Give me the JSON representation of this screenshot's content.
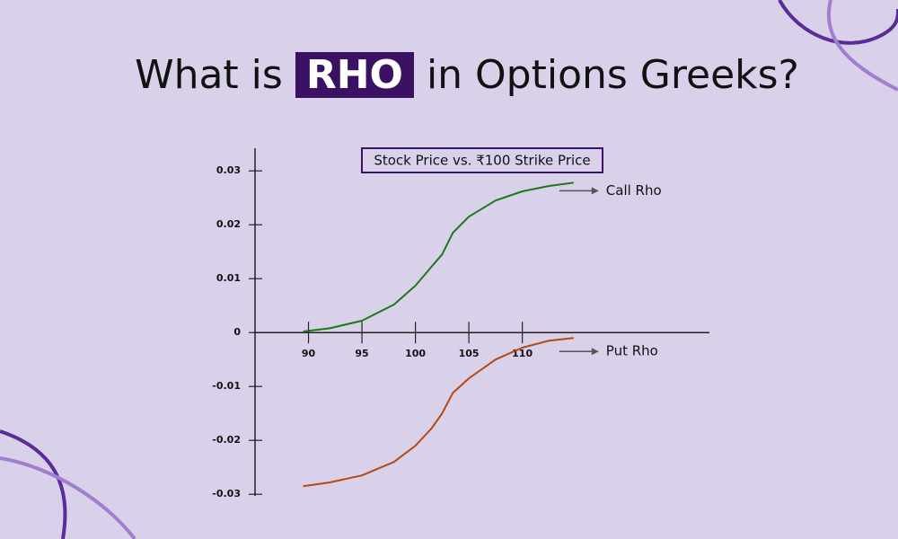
{
  "header": {
    "title_before": "What is",
    "title_highlight": "RHO",
    "title_after": "in Options Greeks?"
  },
  "chart_data": {
    "type": "line",
    "subtitle": "Stock Price vs. ₹100 Strike Price",
    "x": [
      89.5,
      92,
      95,
      98,
      100,
      101.5,
      102.5,
      103.5,
      105,
      107.5,
      110,
      112.5,
      114.8
    ],
    "series": [
      {
        "name": "Call Rho",
        "color": "#1a7a1a",
        "values": [
          0.0002,
          0.0008,
          0.0022,
          0.0052,
          0.0087,
          0.0122,
          0.0145,
          0.0185,
          0.0215,
          0.0245,
          0.0262,
          0.0272,
          0.0278
        ]
      },
      {
        "name": "Put Rho",
        "color": "#b5490f",
        "values": [
          -0.0285,
          -0.0278,
          -0.0265,
          -0.024,
          -0.021,
          -0.0178,
          -0.015,
          -0.0112,
          -0.0085,
          -0.005,
          -0.0028,
          -0.0015,
          -0.001
        ]
      }
    ],
    "xlim": [
      85,
      127.5
    ],
    "xticks": [
      90,
      95,
      100,
      105,
      110
    ],
    "ylim": [
      -0.0303,
      0.0342
    ],
    "yticks": [
      0.03,
      0.02,
      0.01,
      0,
      -0.01,
      -0.02,
      -0.03
    ]
  }
}
